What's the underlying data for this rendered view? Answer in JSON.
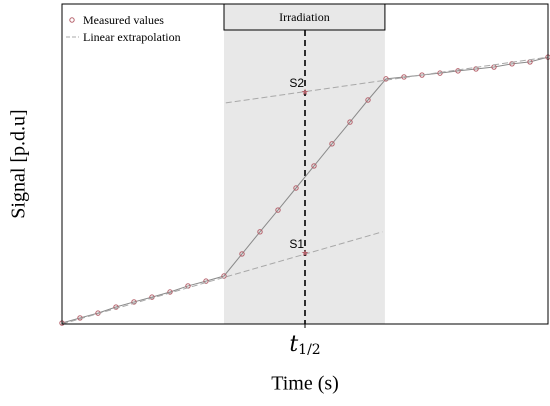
{
  "chart_data": {
    "type": "line",
    "x_label": "Time (s)",
    "y_label": "Signal [p.d.u]",
    "xlim": [
      0,
      27
    ],
    "ylim": [
      0,
      100
    ],
    "series": [
      {
        "name": "Measured values",
        "color": "#b5606a",
        "line_color": "#8a8a8a",
        "x": [
          0,
          1,
          2,
          3,
          4,
          5,
          6,
          7,
          8,
          9,
          10,
          11,
          12,
          13,
          14,
          15,
          16,
          17,
          18,
          19,
          20,
          21,
          22,
          23,
          24,
          25,
          26,
          27
        ],
        "values": [
          0.3,
          1.9,
          3.4,
          5.3,
          6.9,
          8.4,
          10,
          11.9,
          13.4,
          15,
          21.9,
          28.8,
          35.6,
          42.5,
          49.4,
          56.3,
          63.1,
          70,
          76.6,
          77.2,
          77.8,
          78.4,
          79.1,
          79.7,
          80.3,
          81.3,
          81.9,
          83.4
        ]
      },
      {
        "name": "Linear extrapolation",
        "color": "#a8a8a8",
        "x": [
          0,
          17.8,
          null,
          9.1,
          27
        ],
        "values": [
          0,
          28.8,
          null,
          69.1,
          83.4
        ]
      }
    ],
    "band": {
      "label": "Irradiation",
      "x": [
        9,
        17.94
      ],
      "color": "#e8e8e8"
    },
    "half_time": {
      "label": "t",
      "subscript": "1/2",
      "x": 13.5
    },
    "points": [
      {
        "label": "S1",
        "x": 13.5,
        "value": 22.2
      },
      {
        "label": "S2",
        "x": 13.5,
        "value": 72.5
      }
    ]
  }
}
